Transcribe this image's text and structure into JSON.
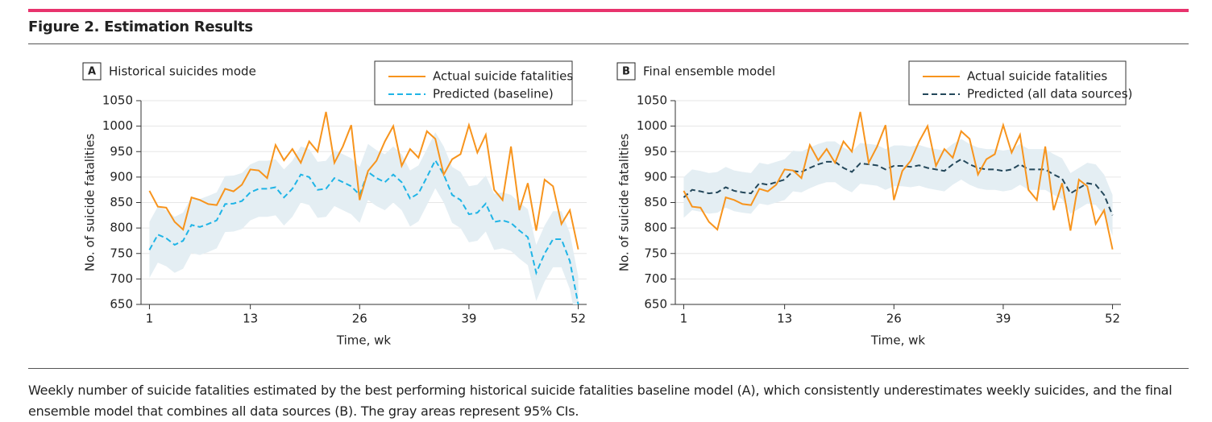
{
  "header": {
    "title": "Figure 2. Estimation Results"
  },
  "charts": [
    {
      "type": "line",
      "panel": "A",
      "title": "Historical suicides mode",
      "xlabel": "Time, wk",
      "ylabel": "No. of suicide fatalities",
      "x": [
        1,
        2,
        3,
        4,
        5,
        6,
        7,
        8,
        9,
        10,
        11,
        12,
        13,
        14,
        15,
        16,
        17,
        18,
        19,
        20,
        21,
        22,
        23,
        24,
        25,
        26,
        27,
        28,
        29,
        30,
        31,
        32,
        33,
        34,
        35,
        36,
        37,
        38,
        39,
        40,
        41,
        42,
        43,
        44,
        45,
        46,
        47,
        48,
        49,
        50,
        51,
        52
      ],
      "xlim": [
        0,
        53
      ],
      "xticks": [
        1,
        13,
        26,
        39,
        52
      ],
      "ylim": [
        650,
        1050
      ],
      "yticks": [
        650,
        700,
        750,
        800,
        850,
        900,
        950,
        1000,
        1050
      ],
      "grid": true,
      "series": [
        {
          "name": "Actual suicide fatalities",
          "color": "#f7941d",
          "style": "solid",
          "values": [
            873,
            842,
            840,
            812,
            797,
            860,
            855,
            847,
            845,
            877,
            872,
            885,
            915,
            913,
            898,
            963,
            933,
            955,
            928,
            970,
            950,
            1028,
            928,
            960,
            1002,
            855,
            912,
            932,
            970,
            1000,
            922,
            955,
            938,
            990,
            975,
            905,
            935,
            945,
            1002,
            948,
            983,
            875,
            855,
            960,
            835,
            888,
            795,
            895,
            882,
            808,
            835,
            758
          ]
        },
        {
          "name": "Predicted (baseline)",
          "color": "#1fb4e6",
          "style": "dashed",
          "band_color": "#e4eef3",
          "values": [
            757,
            787,
            780,
            767,
            775,
            806,
            802,
            808,
            815,
            847,
            848,
            853,
            870,
            877,
            877,
            880,
            860,
            877,
            905,
            900,
            875,
            877,
            898,
            890,
            882,
            865,
            910,
            898,
            890,
            905,
            890,
            858,
            868,
            900,
            933,
            905,
            865,
            855,
            827,
            830,
            848,
            812,
            815,
            810,
            795,
            782,
            712,
            750,
            778,
            778,
            735,
            650
          ],
          "ci_lower": [
            702,
            732,
            725,
            712,
            720,
            751,
            747,
            753,
            760,
            792,
            793,
            798,
            815,
            822,
            822,
            825,
            805,
            822,
            850,
            845,
            820,
            822,
            843,
            835,
            827,
            810,
            855,
            843,
            835,
            850,
            835,
            803,
            813,
            845,
            878,
            850,
            810,
            800,
            772,
            775,
            793,
            757,
            760,
            755,
            740,
            727,
            657,
            695,
            723,
            723,
            680,
            595
          ],
          "ci_upper": [
            812,
            842,
            835,
            822,
            830,
            861,
            857,
            863,
            870,
            902,
            903,
            908,
            925,
            932,
            932,
            935,
            915,
            932,
            960,
            955,
            930,
            932,
            953,
            945,
            937,
            920,
            965,
            953,
            945,
            960,
            945,
            913,
            923,
            955,
            988,
            960,
            920,
            910,
            882,
            885,
            903,
            867,
            870,
            865,
            850,
            837,
            767,
            805,
            833,
            833,
            790,
            705
          ]
        }
      ]
    },
    {
      "type": "line",
      "panel": "B",
      "title": "Final ensemble model",
      "xlabel": "Time, wk",
      "ylabel": "No. of suicide fatalities",
      "x": [
        1,
        2,
        3,
        4,
        5,
        6,
        7,
        8,
        9,
        10,
        11,
        12,
        13,
        14,
        15,
        16,
        17,
        18,
        19,
        20,
        21,
        22,
        23,
        24,
        25,
        26,
        27,
        28,
        29,
        30,
        31,
        32,
        33,
        34,
        35,
        36,
        37,
        38,
        39,
        40,
        41,
        42,
        43,
        44,
        45,
        46,
        47,
        48,
        49,
        50,
        51,
        52
      ],
      "xlim": [
        0,
        53
      ],
      "xticks": [
        1,
        13,
        26,
        39,
        52
      ],
      "ylim": [
        650,
        1050
      ],
      "yticks": [
        650,
        700,
        750,
        800,
        850,
        900,
        950,
        1000,
        1050
      ],
      "grid": true,
      "series": [
        {
          "name": "Actual suicide fatalities",
          "color": "#f7941d",
          "style": "solid",
          "values": [
            873,
            842,
            840,
            812,
            797,
            860,
            855,
            847,
            845,
            877,
            872,
            885,
            915,
            913,
            898,
            963,
            933,
            955,
            928,
            970,
            950,
            1028,
            928,
            960,
            1002,
            855,
            912,
            932,
            970,
            1000,
            922,
            955,
            938,
            990,
            975,
            905,
            935,
            945,
            1002,
            948,
            983,
            875,
            855,
            960,
            835,
            888,
            795,
            895,
            882,
            808,
            835,
            758
          ]
        },
        {
          "name": "Predicted (all data sources)",
          "color": "#23475a",
          "style": "dashed",
          "band_color": "#e4eef3",
          "values": [
            860,
            875,
            872,
            868,
            870,
            880,
            873,
            870,
            868,
            888,
            885,
            890,
            895,
            912,
            910,
            918,
            925,
            930,
            930,
            918,
            910,
            927,
            925,
            923,
            915,
            922,
            922,
            920,
            923,
            918,
            915,
            912,
            925,
            935,
            925,
            918,
            915,
            915,
            912,
            915,
            925,
            915,
            915,
            915,
            905,
            897,
            868,
            878,
            888,
            885,
            865,
            825
          ],
          "ci_lower": [
            820,
            835,
            832,
            828,
            830,
            840,
            833,
            830,
            828,
            848,
            845,
            850,
            855,
            872,
            870,
            878,
            885,
            890,
            890,
            878,
            870,
            887,
            885,
            883,
            875,
            882,
            882,
            880,
            883,
            878,
            875,
            872,
            885,
            895,
            885,
            878,
            875,
            875,
            872,
            875,
            885,
            875,
            875,
            875,
            865,
            857,
            828,
            838,
            848,
            845,
            825,
            785
          ],
          "ci_upper": [
            900,
            915,
            912,
            908,
            910,
            920,
            913,
            910,
            908,
            928,
            925,
            930,
            935,
            952,
            950,
            958,
            965,
            970,
            970,
            958,
            950,
            967,
            965,
            963,
            955,
            962,
            962,
            960,
            963,
            958,
            955,
            952,
            965,
            975,
            965,
            958,
            955,
            955,
            952,
            955,
            965,
            955,
            955,
            955,
            945,
            937,
            908,
            918,
            928,
            925,
            905,
            865
          ]
        }
      ]
    }
  ],
  "caption": "Weekly number of suicide fatalities estimated by the best performing historical suicide fatalities baseline model (A), which consistently underestimates weekly suicides, and the final ensemble model that combines all data sources (B). The gray areas represent 95% CIs."
}
